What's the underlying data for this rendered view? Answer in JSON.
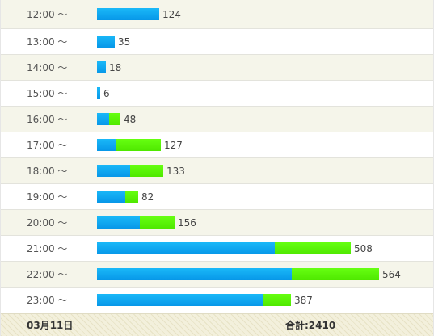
{
  "colors": {
    "blue_segment": "#0aa6f0",
    "green_segment": "#55f000",
    "shaded_row": "#f5f5ea",
    "footer_bg": "#f3f0dc"
  },
  "rows": [
    {
      "time": "12:00 ～",
      "value": "124",
      "blue": 124,
      "green": 0
    },
    {
      "time": "13:00 ～",
      "value": "35",
      "blue": 35,
      "green": 0
    },
    {
      "time": "14:00 ～",
      "value": "18",
      "blue": 18,
      "green": 0
    },
    {
      "time": "15:00 ～",
      "value": "6",
      "blue": 6,
      "green": 0
    },
    {
      "time": "16:00 ～",
      "value": "48",
      "blue": 25,
      "green": 23
    },
    {
      "time": "17:00 ～",
      "value": "127",
      "blue": 38,
      "green": 89
    },
    {
      "time": "18:00 ～",
      "value": "133",
      "blue": 67,
      "green": 66
    },
    {
      "time": "19:00 ～",
      "value": "82",
      "blue": 56,
      "green": 26
    },
    {
      "time": "20:00 ～",
      "value": "156",
      "blue": 86,
      "green": 70
    },
    {
      "time": "21:00 ～",
      "value": "508",
      "blue": 356,
      "green": 152
    },
    {
      "time": "22:00 ～",
      "value": "564",
      "blue": 390,
      "green": 174
    },
    {
      "time": "23:00 ～",
      "value": "387",
      "blue": 331,
      "green": 56
    }
  ],
  "footer": {
    "date": "03月11日",
    "total": "合計:2410"
  }
}
